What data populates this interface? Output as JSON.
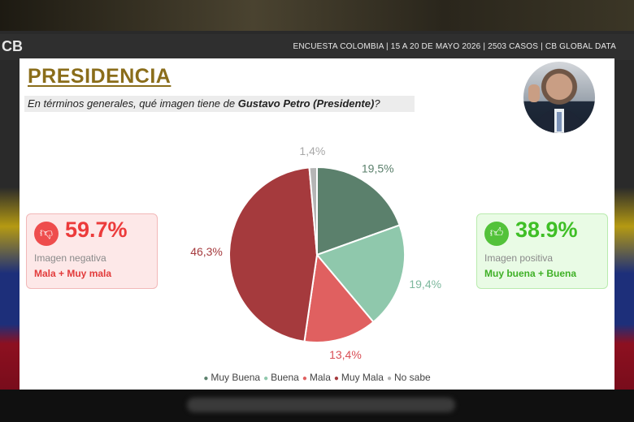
{
  "brand": {
    "logo_text": "CB"
  },
  "header": {
    "survey_info": "ENCUESTA COLOMBIA | 15 A 20 DE MAYO 2026 | 2503 CASOS | CB GLOBAL DATA"
  },
  "card": {
    "title": "PRESIDENCIA",
    "question_pre": "En términos generales, qué imagen tiene de ",
    "question_name": "Gustavo Petro (Presidente)",
    "question_post": "?"
  },
  "negative": {
    "pct": "59.7%",
    "label": "Imagen negativa",
    "sub": "Mala + Muy mala",
    "icon": "thumbs-down-icon"
  },
  "positive": {
    "pct": "38.9%",
    "label": "Imagen positiva",
    "sub": "Muy buena + Buena",
    "icon": "thumbs-up-icon"
  },
  "chart_data": {
    "type": "pie",
    "categories": [
      "Muy Buena",
      "Buena",
      "Mala",
      "Muy Mala",
      "No sabe"
    ],
    "values": [
      19.5,
      19.4,
      13.4,
      46.3,
      1.4
    ],
    "value_labels": [
      "19,5%",
      "19,4%",
      "13,4%",
      "46,3%",
      "1,4%"
    ],
    "colors": [
      "#5b806c",
      "#8fc8ac",
      "#e06060",
      "#a53a3d",
      "#b5b5b5"
    ],
    "label_colors": [
      "#5b806c",
      "#7db89d",
      "#d94e55",
      "#a53a3d",
      "#a8a8a8"
    ],
    "legend": [
      "Muy Buena",
      "Buena",
      "Mala",
      "Muy Mala",
      "No sabe"
    ],
    "legend_placement": "bottom"
  }
}
